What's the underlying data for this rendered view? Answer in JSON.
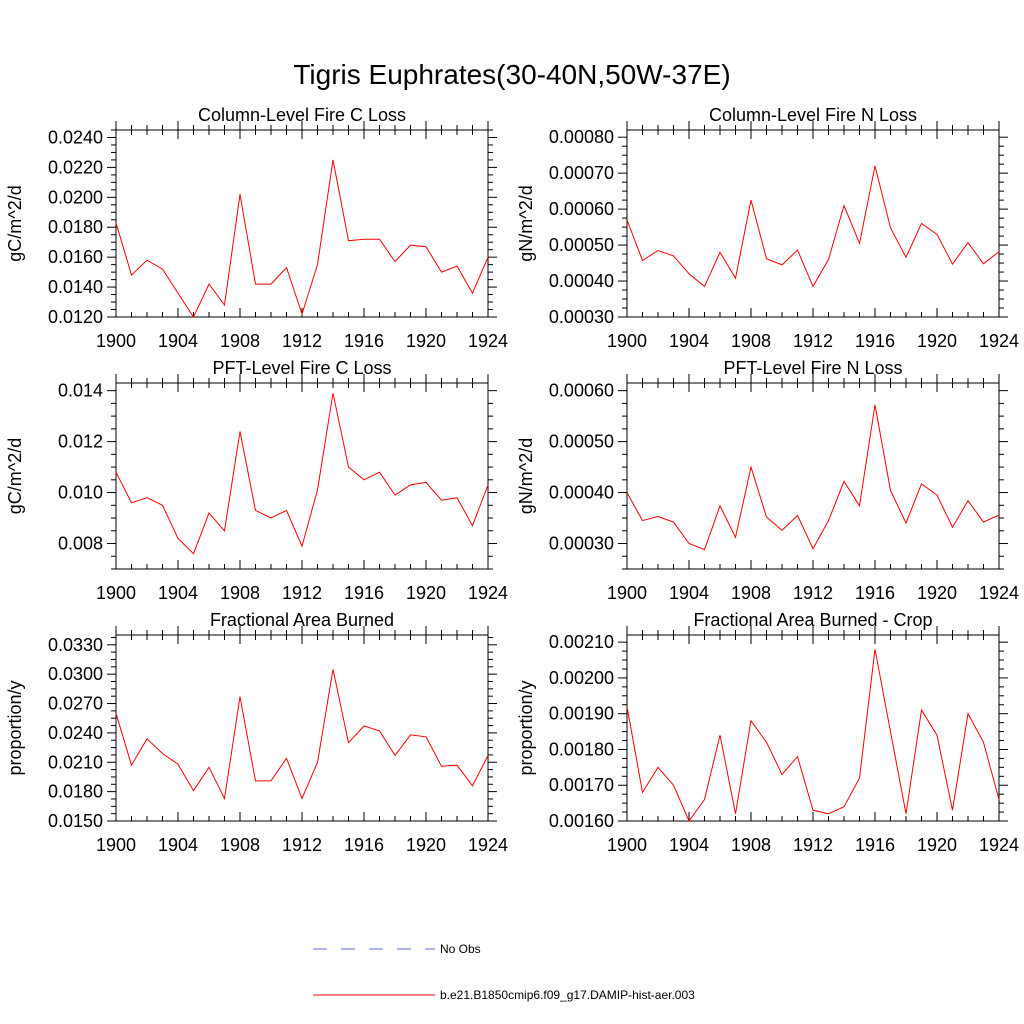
{
  "figure_title": "Tigris Euphrates(30-40N,50W-37E)",
  "legend": [
    {
      "label": "No Obs",
      "color": "#5b6bd6",
      "dash": true
    },
    {
      "label": "b.e21.B1850cmip6.f09_g17.DAMIP-hist-aer.003",
      "color": "#ff0000",
      "dash": false
    }
  ],
  "chart_data": [
    {
      "type": "line",
      "title": "Column-Level Fire C Loss",
      "ylabel": "gC/m^2/d",
      "x": [
        1900,
        1901,
        1902,
        1903,
        1904,
        1905,
        1906,
        1907,
        1908,
        1909,
        1910,
        1911,
        1912,
        1913,
        1914,
        1915,
        1916,
        1917,
        1918,
        1919,
        1920,
        1921,
        1922,
        1923,
        1924
      ],
      "xlim": [
        1900,
        1924
      ],
      "xticks": [
        "1900",
        "1904",
        "1908",
        "1912",
        "1916",
        "1920",
        "1924"
      ],
      "ylim": [
        0.012,
        0.0245
      ],
      "yticks": [
        "0.0120",
        "0.0140",
        "0.0160",
        "0.0180",
        "0.0200",
        "0.0220",
        "0.0240"
      ],
      "series": [
        {
          "color": "#ff0000",
          "values": [
            0.0183,
            0.0148,
            0.0158,
            0.0152,
            0.0136,
            0.012,
            0.0142,
            0.0128,
            0.0202,
            0.0142,
            0.0142,
            0.0153,
            0.0122,
            0.0155,
            0.0225,
            0.0171,
            0.0172,
            0.0172,
            0.0157,
            0.0168,
            0.0167,
            0.015,
            0.0154,
            0.0136,
            0.016
          ]
        }
      ]
    },
    {
      "type": "line",
      "title": "Column-Level Fire N Loss",
      "ylabel": "gN/m^2/d",
      "x": [
        1900,
        1901,
        1902,
        1903,
        1904,
        1905,
        1906,
        1907,
        1908,
        1909,
        1910,
        1911,
        1912,
        1913,
        1914,
        1915,
        1916,
        1917,
        1918,
        1919,
        1920,
        1921,
        1922,
        1923,
        1924
      ],
      "xlim": [
        1900,
        1924
      ],
      "xticks": [
        "1900",
        "1904",
        "1908",
        "1912",
        "1916",
        "1920",
        "1924"
      ],
      "ylim": [
        0.0003,
        0.00082
      ],
      "yticks": [
        "0.00030",
        "0.00040",
        "0.00050",
        "0.00060",
        "0.00070",
        "0.00080"
      ],
      "series": [
        {
          "color": "#ff0000",
          "values": [
            0.00057,
            0.000457,
            0.000485,
            0.00047,
            0.00042,
            0.000385,
            0.00048,
            0.000408,
            0.000625,
            0.000462,
            0.000445,
            0.000486,
            0.000385,
            0.00046,
            0.00061,
            0.000505,
            0.00072,
            0.000548,
            0.000466,
            0.00056,
            0.00053,
            0.000447,
            0.000507,
            0.000448,
            0.000482
          ]
        }
      ]
    },
    {
      "type": "line",
      "title": "PFT-Level Fire C Loss",
      "ylabel": "gC/m^2/d",
      "x": [
        1900,
        1901,
        1902,
        1903,
        1904,
        1905,
        1906,
        1907,
        1908,
        1909,
        1910,
        1911,
        1912,
        1913,
        1914,
        1915,
        1916,
        1917,
        1918,
        1919,
        1920,
        1921,
        1922,
        1923,
        1924
      ],
      "xlim": [
        1900,
        1924
      ],
      "xticks": [
        "1900",
        "1904",
        "1908",
        "1912",
        "1916",
        "1920",
        "1924"
      ],
      "ylim": [
        0.007,
        0.0143
      ],
      "yticks": [
        "0.008",
        "0.010",
        "0.012",
        "0.014"
      ],
      "series": [
        {
          "color": "#ff0000",
          "values": [
            0.0108,
            0.0096,
            0.0098,
            0.0095,
            0.0082,
            0.0076,
            0.0092,
            0.0085,
            0.0124,
            0.0093,
            0.009,
            0.0093,
            0.0079,
            0.0101,
            0.0139,
            0.011,
            0.0105,
            0.0108,
            0.0099,
            0.0103,
            0.0104,
            0.0097,
            0.0098,
            0.0087,
            0.0103
          ]
        }
      ]
    },
    {
      "type": "line",
      "title": "PFT-Level Fire N Loss",
      "ylabel": "gN/m^2/d",
      "x": [
        1900,
        1901,
        1902,
        1903,
        1904,
        1905,
        1906,
        1907,
        1908,
        1909,
        1910,
        1911,
        1912,
        1913,
        1914,
        1915,
        1916,
        1917,
        1918,
        1919,
        1920,
        1921,
        1922,
        1923,
        1924
      ],
      "xlim": [
        1900,
        1924
      ],
      "xticks": [
        "1900",
        "1904",
        "1908",
        "1912",
        "1916",
        "1920",
        "1924"
      ],
      "ylim": [
        0.00025,
        0.000615
      ],
      "yticks": [
        "0.00030",
        "0.00040",
        "0.00050",
        "0.00060"
      ],
      "series": [
        {
          "color": "#ff0000",
          "values": [
            0.0004,
            0.000345,
            0.000353,
            0.000342,
            0.0003,
            0.000288,
            0.000374,
            0.000312,
            0.00045,
            0.000352,
            0.000326,
            0.000355,
            0.00029,
            0.000345,
            0.000422,
            0.000374,
            0.000572,
            0.000404,
            0.00034,
            0.000417,
            0.000395,
            0.000332,
            0.000384,
            0.000342,
            0.000356
          ]
        }
      ]
    },
    {
      "type": "line",
      "title": "Fractional Area Burned",
      "ylabel": "proportion/y",
      "x": [
        1900,
        1901,
        1902,
        1903,
        1904,
        1905,
        1906,
        1907,
        1908,
        1909,
        1910,
        1911,
        1912,
        1913,
        1914,
        1915,
        1916,
        1917,
        1918,
        1919,
        1920,
        1921,
        1922,
        1923,
        1924
      ],
      "xlim": [
        1900,
        1924
      ],
      "xticks": [
        "1900",
        "1904",
        "1908",
        "1912",
        "1916",
        "1920",
        "1924"
      ],
      "ylim": [
        0.015,
        0.034
      ],
      "yticks": [
        "0.0150",
        "0.0180",
        "0.0210",
        "0.0240",
        "0.0270",
        "0.0300",
        "0.0330"
      ],
      "series": [
        {
          "color": "#ff0000",
          "values": [
            0.026,
            0.0207,
            0.0234,
            0.0219,
            0.0208,
            0.0181,
            0.0205,
            0.0173,
            0.0277,
            0.0191,
            0.0191,
            0.0214,
            0.0173,
            0.021,
            0.0305,
            0.023,
            0.0247,
            0.0242,
            0.0217,
            0.0238,
            0.0236,
            0.0206,
            0.0207,
            0.0186,
            0.0217
          ]
        }
      ]
    },
    {
      "type": "line",
      "title": "Fractional Area Burned - Crop",
      "ylabel": "proportion/y",
      "x": [
        1900,
        1901,
        1902,
        1903,
        1904,
        1905,
        1906,
        1907,
        1908,
        1909,
        1910,
        1911,
        1912,
        1913,
        1914,
        1915,
        1916,
        1917,
        1918,
        1919,
        1920,
        1921,
        1922,
        1923,
        1924
      ],
      "xlim": [
        1900,
        1924
      ],
      "xticks": [
        "1900",
        "1904",
        "1908",
        "1912",
        "1916",
        "1920",
        "1924"
      ],
      "ylim": [
        0.0016,
        0.00212
      ],
      "yticks": [
        "0.00160",
        "0.00170",
        "0.00180",
        "0.00190",
        "0.00200",
        "0.00210"
      ],
      "series": [
        {
          "color": "#ff0000",
          "values": [
            0.00192,
            0.00168,
            0.00175,
            0.0017,
            0.0016,
            0.00166,
            0.00184,
            0.00162,
            0.00188,
            0.00182,
            0.00173,
            0.00178,
            0.00163,
            0.00162,
            0.00164,
            0.00172,
            0.00208,
            0.00185,
            0.00162,
            0.00191,
            0.00184,
            0.00163,
            0.0019,
            0.00182,
            0.00166
          ]
        }
      ]
    }
  ]
}
